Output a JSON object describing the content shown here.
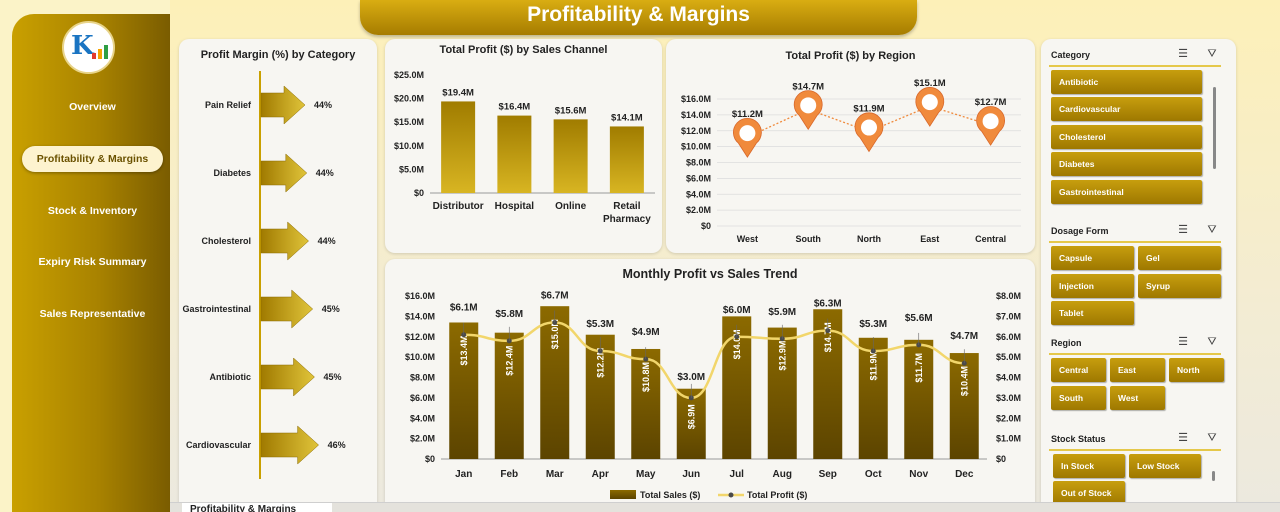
{
  "page_title": "Profitability & Margins",
  "nav": {
    "items": [
      {
        "label": "Overview"
      },
      {
        "label": "Profitability & Margins",
        "active": true
      },
      {
        "label": "Stock & Inventory"
      },
      {
        "label": "Expiry Risk Summary"
      },
      {
        "label": "Sales Representative"
      }
    ]
  },
  "sheet_tab": {
    "label": "Profitability & Margins"
  },
  "colors": {
    "gold": "#c9a000",
    "bar": "#8c6c00",
    "line": "#f2d66b",
    "marker": "#f08a3c"
  },
  "chart_data": [
    {
      "id": "margin",
      "type": "bar",
      "title": "Profit Margin (%) by Category",
      "categories": [
        "Pain Relief",
        "Diabetes",
        "Cholesterol",
        "Gastrointestinal",
        "Antibiotic",
        "Cardiovascular"
      ],
      "values": [
        44,
        44,
        44,
        45,
        45,
        46
      ],
      "value_labels": [
        "44%",
        "44%",
        "44%",
        "45%",
        "45%",
        "46%"
      ]
    },
    {
      "id": "channel",
      "type": "bar",
      "title": "Total Profit ($) by Sales Channel",
      "categories": [
        "Distributor",
        "Hospital",
        "Online",
        "Retail Pharmacy"
      ],
      "values": [
        19.4,
        16.4,
        15.6,
        14.1
      ],
      "value_labels": [
        "$19.4M",
        "$16.4M",
        "$15.6M",
        "$14.1M"
      ],
      "yticks": [
        "$0",
        "$5.0M",
        "$10.0M",
        "$15.0M",
        "$20.0M",
        "$25.0M"
      ],
      "ylim": [
        0,
        25
      ]
    },
    {
      "id": "region",
      "type": "line",
      "title": "Total Profit ($) by Region",
      "categories": [
        "West",
        "South",
        "North",
        "East",
        "Central"
      ],
      "values": [
        11.2,
        14.7,
        11.9,
        15.1,
        12.7
      ],
      "value_labels": [
        "$11.2M",
        "$14.7M",
        "$11.9M",
        "$15.1M",
        "$12.7M"
      ],
      "yticks": [
        "$0",
        "$2.0M",
        "$4.0M",
        "$6.0M",
        "$8.0M",
        "$10.0M",
        "$12.0M",
        "$14.0M",
        "$16.0M"
      ],
      "ylim": [
        0,
        16
      ]
    },
    {
      "id": "monthly",
      "type": "bar",
      "title": "Monthly Profit vs Sales Trend",
      "categories": [
        "Jan",
        "Feb",
        "Mar",
        "Apr",
        "May",
        "Jun",
        "Jul",
        "Aug",
        "Sep",
        "Oct",
        "Nov",
        "Dec"
      ],
      "series": [
        {
          "name": "Total Sales ($)",
          "values": [
            13.4,
            12.4,
            15.0,
            12.2,
            10.8,
            6.9,
            14.0,
            12.9,
            14.7,
            11.9,
            11.7,
            10.4
          ],
          "value_labels": [
            "$13.4M",
            "$12.4M",
            "$15.0M",
            "$12.2M",
            "$10.8M",
            "$6.9M",
            "$14.0M",
            "$12.9M",
            "$14.7M",
            "$11.9M",
            "$11.7M",
            "$10.4M"
          ]
        },
        {
          "name": "Total Profit ($)",
          "values": [
            6.1,
            5.8,
            6.7,
            5.3,
            4.9,
            3.0,
            6.0,
            5.9,
            6.3,
            5.3,
            5.6,
            4.7
          ],
          "value_labels": [
            "$6.1M",
            "$5.8M",
            "$6.7M",
            "$5.3M",
            "$4.9M",
            "$3.0M",
            "$6.0M",
            "$5.9M",
            "$6.3M",
            "$5.3M",
            "$5.6M",
            "$4.7M"
          ]
        }
      ],
      "y_left_ticks": [
        "$0",
        "$2.0M",
        "$4.0M",
        "$6.0M",
        "$8.0M",
        "$10.0M",
        "$12.0M",
        "$14.0M",
        "$16.0M"
      ],
      "y_right_ticks": [
        "$0",
        "$1.0M",
        "$2.0M",
        "$3.0M",
        "$4.0M",
        "$5.0M",
        "$6.0M",
        "$7.0M",
        "$8.0M"
      ],
      "ylim_left": [
        0,
        16
      ],
      "ylim_right": [
        0,
        8
      ]
    }
  ],
  "slicers": {
    "category": {
      "title": "Category",
      "items": [
        "Antibiotic",
        "Cardiovascular",
        "Cholesterol",
        "Diabetes",
        "Gastrointestinal"
      ]
    },
    "dosage": {
      "title": "Dosage Form",
      "items": [
        "Capsule",
        "Gel",
        "Injection",
        "Syrup",
        "Tablet"
      ]
    },
    "region": {
      "title": "Region",
      "items": [
        "Central",
        "East",
        "North",
        "South",
        "West"
      ]
    },
    "stock": {
      "title": "Stock Status",
      "items": [
        "In Stock",
        "Low Stock",
        "Out of Stock"
      ]
    }
  }
}
